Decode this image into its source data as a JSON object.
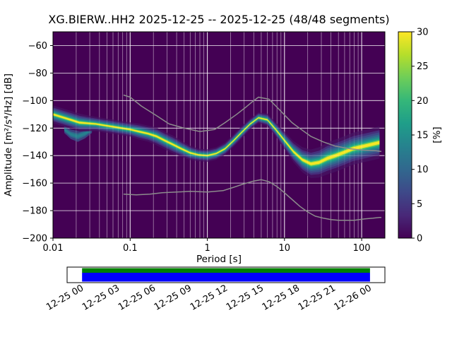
{
  "chart_data": {
    "type": "heatmap",
    "title": "XG.BIERW..HH2   2025-12-25 -- 2025-12-25  (48/48 segments)",
    "xlabel": "Period [s]",
    "ylabel": "Amplitude [m²/s⁴/Hz] [dB]",
    "xscale": "log",
    "xlim": [
      0.01,
      200
    ],
    "ylim": [
      -200,
      -50
    ],
    "xticks": [
      0.01,
      0.1,
      1,
      10,
      100
    ],
    "xtick_labels": [
      "0.01",
      "0.1",
      "1",
      "10",
      "100"
    ],
    "yticks": [
      -60,
      -80,
      -100,
      -120,
      -140,
      -160,
      -180,
      -200
    ],
    "ytick_labels": [
      "−60",
      "−80",
      "−100",
      "−120",
      "−140",
      "−160",
      "−180",
      "−200"
    ],
    "grid": true,
    "background_color": "#440154",
    "grid_color": "#ffffff",
    "colorbar": {
      "label": "[%]",
      "min": 0,
      "max": 30,
      "ticks": [
        0,
        5,
        10,
        15,
        20,
        25,
        30
      ],
      "tick_labels": [
        "0",
        "5",
        "10",
        "15",
        "20",
        "25",
        "30"
      ],
      "colormap": "viridis",
      "stops": [
        "#440154",
        "#482878",
        "#3e4989",
        "#31688e",
        "#26828e",
        "#1f9e89",
        "#35b779",
        "#6ece58",
        "#b5de2b",
        "#fde725"
      ]
    },
    "psd_mode": {
      "period": [
        0.01,
        0.013,
        0.017,
        0.022,
        0.028,
        0.036,
        0.046,
        0.06,
        0.077,
        0.1,
        0.13,
        0.17,
        0.22,
        0.28,
        0.36,
        0.46,
        0.6,
        0.77,
        1,
        1.3,
        1.7,
        2.2,
        2.8,
        3.6,
        4.6,
        6,
        7.7,
        10,
        13,
        17,
        22,
        28,
        36,
        46,
        60,
        77,
        100,
        130,
        170
      ],
      "db": [
        -110,
        -112,
        -114,
        -116,
        -116.5,
        -117,
        -118,
        -119,
        -120,
        -121,
        -122.5,
        -124,
        -126,
        -129,
        -132,
        -135,
        -138,
        -139.5,
        -140,
        -138.5,
        -135,
        -129,
        -123,
        -117,
        -112.5,
        -114,
        -121,
        -129,
        -137,
        -143,
        -146,
        -145,
        -142,
        -140,
        -137.5,
        -135,
        -133.5,
        -132,
        -130.5
      ],
      "halfwidth_db": [
        5,
        5,
        5,
        5,
        4.5,
        4,
        4,
        4,
        4,
        4,
        4.5,
        4.5,
        5,
        5,
        5,
        4.5,
        4,
        3.5,
        3.5,
        3.5,
        3.5,
        3.5,
        3.5,
        3,
        3,
        3.5,
        4,
        5,
        6,
        7,
        8,
        8.5,
        9,
        9,
        9,
        9,
        9,
        9,
        9
      ]
    },
    "psd_secondary": {
      "period": [
        0.014,
        0.017,
        0.021,
        0.026,
        0.032
      ],
      "db": [
        -121,
        -124.5,
        -126,
        -124,
        -121
      ],
      "halfwidth_db": [
        2.5,
        3.5,
        4,
        3.5,
        2.5
      ]
    },
    "band_layers": [
      {
        "f": 1.3,
        "color": "#451060"
      },
      {
        "f": 1.0,
        "color": "#46327e"
      },
      {
        "f": 0.82,
        "color": "#3d4e8a"
      },
      {
        "f": 0.65,
        "color": "#31688e"
      },
      {
        "f": 0.5,
        "color": "#26828e"
      },
      {
        "f": 0.37,
        "color": "#1f9e89"
      },
      {
        "f": 0.26,
        "color": "#35b779"
      },
      {
        "f": 0.18,
        "color": "#a0da39"
      },
      {
        "f": 0.11,
        "color": "#fde725"
      }
    ],
    "secondary_layers": [
      {
        "f": 1.0,
        "color": "#3b528b"
      },
      {
        "f": 0.55,
        "color": "#2c728e"
      },
      {
        "f": 0.28,
        "color": "#24868e"
      }
    ],
    "noise_models": {
      "color": "#8c8c8c",
      "high": {
        "period": [
          0.082,
          0.1,
          0.14,
          0.22,
          0.32,
          0.5,
          0.8,
          1.24,
          1.7,
          2.4,
          3.2,
          3.8,
          4.6,
          6.3,
          7.9,
          10.2,
          12.5,
          15.6,
          21.9,
          31.6,
          45,
          70,
          101,
          154,
          180
        ],
        "db": [
          -96,
          -97.5,
          -104,
          -111,
          -117,
          -120,
          -122.5,
          -121,
          -116,
          -110,
          -104.5,
          -101,
          -97.5,
          -99,
          -104.5,
          -111,
          -116,
          -120,
          -126,
          -130,
          -133,
          -135,
          -136,
          -136.5,
          -137
        ]
      },
      "low": {
        "period": [
          0.082,
          0.12,
          0.18,
          0.26,
          0.4,
          0.6,
          1,
          1.6,
          2.2,
          3,
          4,
          5,
          6.3,
          8,
          10,
          12.6,
          15.9,
          20,
          25,
          32,
          40,
          50,
          80,
          110,
          140,
          170,
          180
        ],
        "db": [
          -168,
          -168.5,
          -168,
          -167,
          -166.5,
          -166,
          -166.5,
          -165.5,
          -163,
          -160.5,
          -158.5,
          -157.5,
          -159,
          -162.5,
          -167,
          -172,
          -177,
          -181,
          -184,
          -185.5,
          -186.5,
          -187,
          -187,
          -186,
          -185.5,
          -185,
          -185
        ]
      }
    },
    "timeline": {
      "tick_labels": [
        "12-25 00",
        "12-25 03",
        "12-25 06",
        "12-25 09",
        "12-25 12",
        "12-25 15",
        "12-25 18",
        "12-25 21",
        "12-26 00"
      ],
      "coverage_color_top": "#008000",
      "coverage_color_bottom": "#0000ff",
      "coverage_start_frac": 0.047,
      "coverage_end_frac": 0.953
    }
  }
}
